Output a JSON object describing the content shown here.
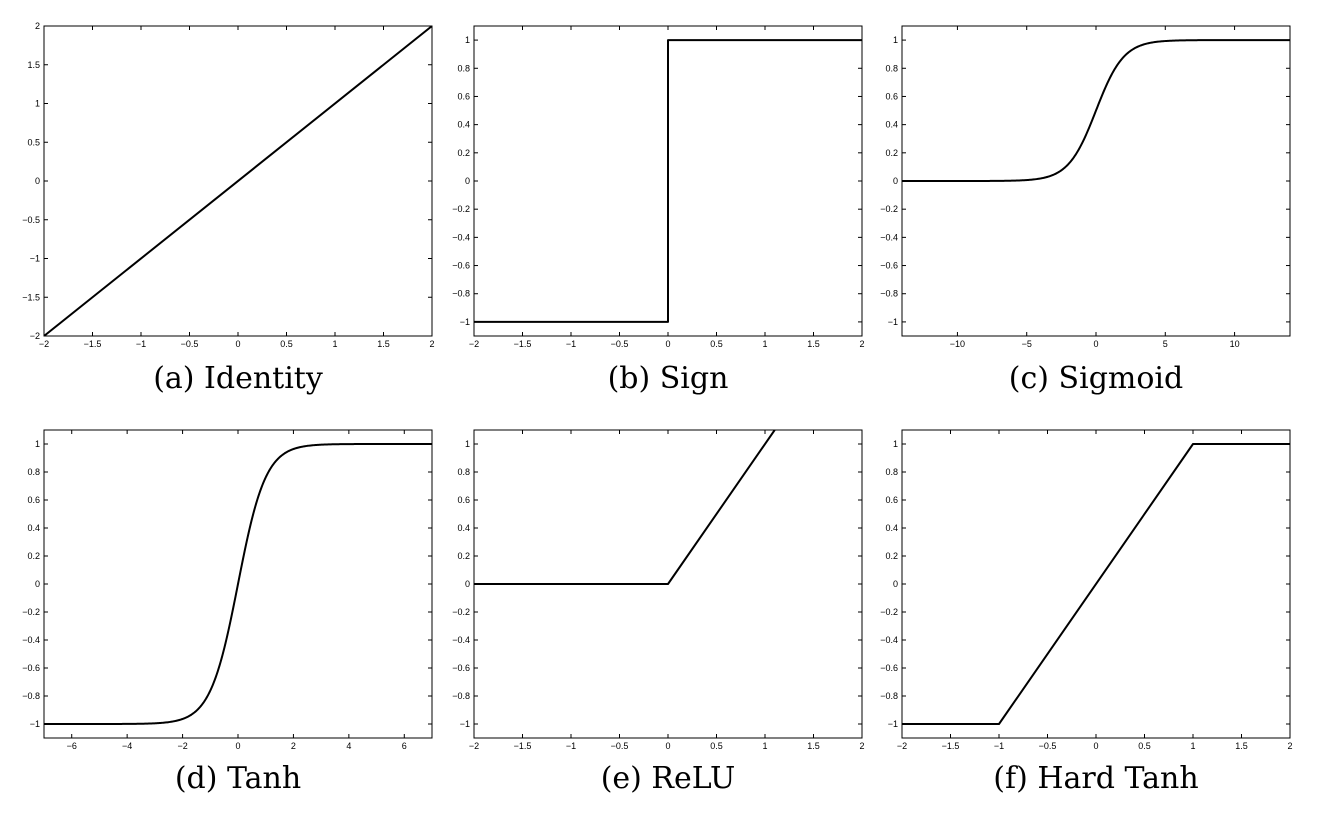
{
  "chart_data": [
    {
      "type": "line",
      "caption": "(a) Identity",
      "xlim": [
        -2,
        2
      ],
      "ylim": [
        -2,
        2
      ],
      "x_ticks": [
        -2,
        -1.5,
        -1,
        -0.5,
        0,
        0.5,
        1,
        1.5,
        2
      ],
      "x_tick_labels": [
        "−2",
        "−1.5",
        "−1",
        "−0.5",
        "0",
        "0.5",
        "1",
        "1.5",
        "2"
      ],
      "y_ticks": [
        -2,
        -1.5,
        -1,
        -0.5,
        0,
        0.5,
        1,
        1.5,
        2
      ],
      "y_tick_labels": [
        "−2",
        "−1.5",
        "−1",
        "−0.5",
        "0",
        "0.5",
        "1",
        "1.5",
        "2"
      ],
      "grid": false,
      "series": [
        {
          "function": "identity",
          "x": [
            -2,
            2
          ],
          "y": [
            -2,
            2
          ]
        }
      ]
    },
    {
      "type": "line",
      "caption": "(b) Sign",
      "xlim": [
        -2,
        2
      ],
      "ylim": [
        -1.1,
        1.1
      ],
      "x_ticks": [
        -2,
        -1.5,
        -1,
        -0.5,
        0,
        0.5,
        1,
        1.5,
        2
      ],
      "x_tick_labels": [
        "−2",
        "−1.5",
        "−1",
        "−0.5",
        "0",
        "0.5",
        "1",
        "1.5",
        "2"
      ],
      "y_ticks": [
        -1,
        -0.8,
        -0.6,
        -0.4,
        -0.2,
        0,
        0.2,
        0.4,
        0.6,
        0.8,
        1
      ],
      "y_tick_labels": [
        "−1",
        "−0.8",
        "−0.6",
        "−0.4",
        "−0.2",
        "0",
        "0.2",
        "0.4",
        "0.6",
        "0.8",
        "1"
      ],
      "grid": false,
      "series": [
        {
          "function": "sign",
          "x": [
            -2,
            0,
            0,
            2
          ],
          "y": [
            -1,
            -1,
            1,
            1
          ]
        }
      ]
    },
    {
      "type": "line",
      "caption": "(c) Sigmoid",
      "xlim": [
        -14,
        14
      ],
      "ylim": [
        -1.1,
        1.1
      ],
      "x_ticks": [
        -10,
        -5,
        0,
        5,
        10
      ],
      "x_tick_labels": [
        "−10",
        "−5",
        "0",
        "5",
        "10"
      ],
      "y_ticks": [
        -1,
        -0.8,
        -0.6,
        -0.4,
        -0.2,
        0,
        0.2,
        0.4,
        0.6,
        0.8,
        1
      ],
      "y_tick_labels": [
        "−1",
        "−0.8",
        "−0.6",
        "−0.4",
        "−0.2",
        "0",
        "0.2",
        "0.4",
        "0.6",
        "0.8",
        "1"
      ],
      "grid": false,
      "series": [
        {
          "function": "sigmoid",
          "x": [
            -14,
            14
          ]
        }
      ]
    },
    {
      "type": "line",
      "caption": "(d) Tanh",
      "xlim": [
        -7,
        7
      ],
      "ylim": [
        -1.1,
        1.1
      ],
      "x_ticks": [
        -6,
        -4,
        -2,
        0,
        2,
        4,
        6
      ],
      "x_tick_labels": [
        "−6",
        "−4",
        "−2",
        "0",
        "2",
        "4",
        "6"
      ],
      "y_ticks": [
        -1,
        -0.8,
        -0.6,
        -0.4,
        -0.2,
        0,
        0.2,
        0.4,
        0.6,
        0.8,
        1
      ],
      "y_tick_labels": [
        "−1",
        "−0.8",
        "−0.6",
        "−0.4",
        "−0.2",
        "0",
        "0.2",
        "0.4",
        "0.6",
        "0.8",
        "1"
      ],
      "grid": false,
      "series": [
        {
          "function": "tanh",
          "x": [
            -7,
            7
          ]
        }
      ]
    },
    {
      "type": "line",
      "caption": "(e) ReLU",
      "xlim": [
        -2,
        2
      ],
      "ylim": [
        -1.1,
        1.1
      ],
      "x_ticks": [
        -2,
        -1.5,
        -1,
        -0.5,
        0,
        0.5,
        1,
        1.5,
        2
      ],
      "x_tick_labels": [
        "−2",
        "−1.5",
        "−1",
        "−0.5",
        "0",
        "0.5",
        "1",
        "1.5",
        "2"
      ],
      "y_ticks": [
        -1,
        -0.8,
        -0.6,
        -0.4,
        -0.2,
        0,
        0.2,
        0.4,
        0.6,
        0.8,
        1
      ],
      "y_tick_labels": [
        "−1",
        "−0.8",
        "−0.6",
        "−0.4",
        "−0.2",
        "0",
        "0.2",
        "0.4",
        "0.6",
        "0.8",
        "1"
      ],
      "grid": false,
      "series": [
        {
          "function": "relu",
          "x": [
            -2,
            0,
            1.1
          ],
          "y": [
            0,
            0,
            1.1
          ]
        }
      ]
    },
    {
      "type": "line",
      "caption": "(f) Hard Tanh",
      "xlim": [
        -2,
        2
      ],
      "ylim": [
        -1.1,
        1.1
      ],
      "x_ticks": [
        -2,
        -1.5,
        -1,
        -0.5,
        0,
        0.5,
        1,
        1.5,
        2
      ],
      "x_tick_labels": [
        "−2",
        "−1.5",
        "−1",
        "−0.5",
        "0",
        "0.5",
        "1",
        "1.5",
        "2"
      ],
      "y_ticks": [
        -1,
        -0.8,
        -0.6,
        -0.4,
        -0.2,
        0,
        0.2,
        0.4,
        0.6,
        0.8,
        1
      ],
      "y_tick_labels": [
        "−1",
        "−0.8",
        "−0.6",
        "−0.4",
        "−0.2",
        "0",
        "0.2",
        "0.4",
        "0.6",
        "0.8",
        "1"
      ],
      "grid": false,
      "series": [
        {
          "function": "hardtanh",
          "x": [
            -2,
            -1,
            1,
            2
          ],
          "y": [
            -1,
            -1,
            1,
            1
          ]
        }
      ]
    }
  ]
}
